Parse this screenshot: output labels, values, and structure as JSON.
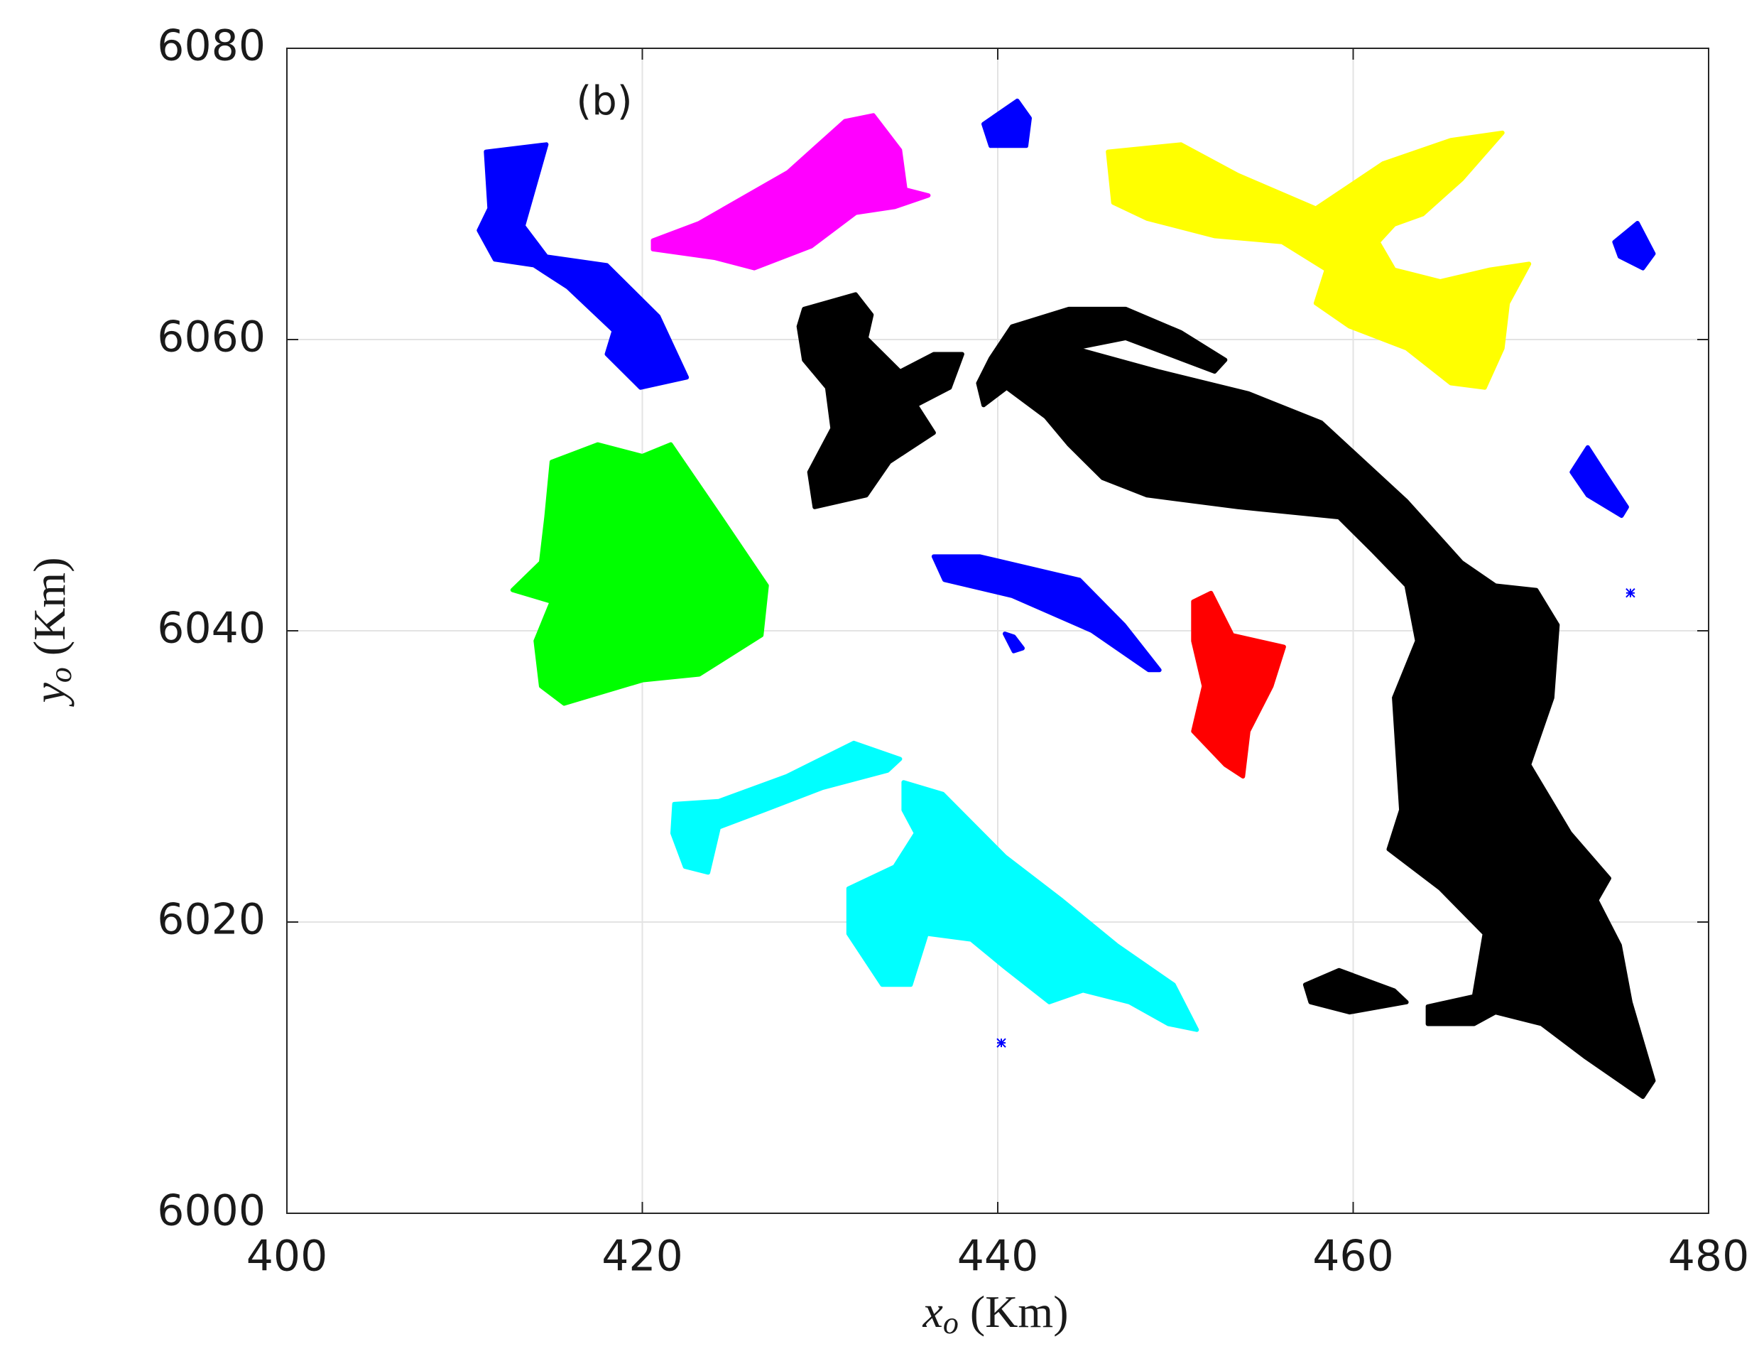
{
  "chart_data": {
    "type": "scatter",
    "annotation": "(b)",
    "xlabel": {
      "symbol": "x",
      "subscript": "o",
      "unit": "(Km)"
    },
    "ylabel": {
      "symbol": "y",
      "subscript": "o",
      "unit": "(Km)"
    },
    "xlim": [
      400,
      480
    ],
    "ylim": [
      6000,
      6080
    ],
    "xticks": [
      400,
      420,
      440,
      460,
      480
    ],
    "yticks": [
      6000,
      6020,
      6040,
      6060,
      6080
    ],
    "grid": true,
    "series": [
      {
        "color": "#0000ff",
        "x": [
          411.2,
          414.6,
          413.3,
          414.6,
          418.0,
          420.9,
          422.5,
          419.9,
          418.0,
          418.4,
          415.8,
          413.9,
          411.7,
          410.8,
          411.4,
          null,
          439.2,
          441.1,
          441.8,
          441.6,
          439.6,
          null,
          474.7,
          476.0,
          476.9,
          476.3,
          475.0,
          null,
          472.3,
          473.2,
          474.1,
          475.4,
          475.1,
          473.2,
          null,
          436.4,
          439.0,
          444.6,
          447.1,
          449.1,
          448.5,
          445.3,
          440.8,
          437.0,
          null,
          440.4,
          440.9,
          441.4,
          440.9,
          null,
          475.6,
          null,
          440.2
        ],
        "y": [
          6072.9,
          6073.4,
          6067.8,
          6065.7,
          6065.1,
          6061.6,
          6057.4,
          6056.7,
          6059.0,
          6060.6,
          6063.6,
          6065.1,
          6065.5,
          6067.5,
          6069.0,
          null,
          6074.8,
          6076.4,
          6075.2,
          6073.3,
          6073.3,
          null,
          6066.7,
          6068.0,
          6065.9,
          6064.9,
          6065.7,
          null,
          6050.9,
          6052.6,
          6050.9,
          6048.5,
          6047.9,
          6049.3,
          null,
          6045.1,
          6045.1,
          6043.5,
          6040.4,
          6037.3,
          6037.3,
          6040.0,
          6042.4,
          6043.5,
          null,
          6039.8,
          6039.6,
          6038.8,
          6038.6,
          null,
          6042.6,
          null,
          6011.7
        ]
      },
      {
        "color": "#ff00ff",
        "x": [
          420.6,
          423.2,
          428.2,
          431.4,
          433.0,
          434.5,
          434.8,
          436.1,
          434.2,
          432.0,
          429.5,
          426.3,
          424.1,
          420.6
        ],
        "y": [
          6066.8,
          6068.0,
          6071.5,
          6075.0,
          6075.4,
          6073.0,
          6070.3,
          6069.9,
          6069.1,
          6068.7,
          6066.4,
          6064.9,
          6065.6,
          6066.2
        ]
      },
      {
        "color": "#ffff00",
        "x": [
          446.2,
          450.3,
          453.5,
          457.9,
          461.7,
          465.5,
          468.4,
          466.1,
          463.9,
          462.3,
          461.4,
          462.3,
          464.9,
          467.7,
          469.9,
          468.7,
          468.4,
          467.4,
          465.5,
          463.0,
          459.8,
          457.9,
          458.5,
          456.0,
          452.2,
          448.4,
          446.5
        ],
        "y": [
          6072.9,
          6073.4,
          6071.3,
          6069.0,
          6072.1,
          6073.7,
          6074.2,
          6071.0,
          6068.6,
          6067.9,
          6066.7,
          6064.8,
          6064.0,
          6064.8,
          6065.2,
          6062.5,
          6059.4,
          6056.7,
          6057.0,
          6059.4,
          6060.9,
          6062.5,
          6064.8,
          6066.7,
          6067.1,
          6068.3,
          6069.4
        ]
      },
      {
        "color": "#000000",
        "x": [
          429.1,
          432.0,
          432.9,
          432.6,
          434.5,
          436.4,
          438.0,
          437.3,
          435.4,
          436.4,
          433.9,
          432.6,
          429.7,
          429.4,
          430.7,
          430.4,
          429.1,
          428.8,
          null,
          438.9,
          439.6,
          440.8,
          444.0,
          447.2,
          450.3,
          452.8,
          452.2,
          447.2,
          444.3,
          449.1,
          454.1,
          458.2,
          463.0,
          466.1,
          468.0,
          470.3,
          471.5,
          471.2,
          469.9,
          472.2,
          474.4,
          473.7,
          475.0,
          475.6,
          476.9,
          476.3,
          473.1,
          470.6,
          468.0,
          466.8,
          464.2,
          464.2,
          466.8,
          467.4,
          464.9,
          462.0,
          462.7,
          462.3,
          463.6,
          463.0,
          461.1,
          459.2,
          453.5,
          448.4,
          445.9,
          444.0,
          442.7,
          440.5,
          439.2,
          null,
          457.3,
          459.2,
          462.3,
          463.0,
          459.8,
          457.6
        ],
        "y": [
          6062.1,
          6063.1,
          6061.7,
          6060.1,
          6057.8,
          6059.0,
          6059.0,
          6056.7,
          6055.5,
          6053.6,
          6051.6,
          6049.3,
          6048.5,
          6050.9,
          6053.9,
          6056.7,
          6058.6,
          6060.9,
          null,
          6057.0,
          6058.7,
          6060.9,
          6062.1,
          6062.1,
          6060.5,
          6058.6,
          6057.8,
          6060.1,
          6059.4,
          6057.8,
          6056.3,
          6054.3,
          6048.9,
          6044.7,
          6043.1,
          6042.8,
          6040.4,
          6035.4,
          6030.8,
          6026.1,
          6023.0,
          6021.5,
          6018.4,
          6014.5,
          6009.1,
          6008.0,
          6010.7,
          6013.0,
          6013.8,
          6013.0,
          6013.0,
          6014.2,
          6014.9,
          6019.2,
          6022.3,
          6025.0,
          6027.7,
          6035.4,
          6039.3,
          6043.1,
          6045.5,
          6047.8,
          6048.5,
          6049.3,
          6050.5,
          6052.8,
          6054.7,
          6056.7,
          6055.5,
          null,
          6015.7,
          6016.7,
          6015.3,
          6014.5,
          6013.8,
          6014.5
        ]
      },
      {
        "color": "#00ff00",
        "x": [
          414.9,
          417.5,
          420.0,
          421.6,
          424.4,
          427.0,
          426.7,
          423.2,
          420.0,
          415.6,
          414.3,
          414.0,
          414.9,
          412.7,
          414.3,
          414.6
        ],
        "y": [
          6051.6,
          6052.8,
          6052.0,
          6052.8,
          6047.8,
          6043.1,
          6039.7,
          6037.0,
          6036.6,
          6035.0,
          6036.2,
          6039.3,
          6042.0,
          6042.8,
          6044.7,
          6047.8
        ]
      },
      {
        "color": "#ff0000",
        "x": [
          451.0,
          452.0,
          453.2,
          456.1,
          455.4,
          454.1,
          453.8,
          452.8,
          451.0,
          451.6,
          451.0
        ],
        "y": [
          6042.0,
          6042.6,
          6039.7,
          6038.9,
          6036.2,
          6033.1,
          6030.0,
          6030.8,
          6033.1,
          6036.2,
          6039.3
        ]
      },
      {
        "color": "#00ffff",
        "x": [
          421.8,
          424.3,
          428.1,
          431.9,
          434.5,
          433.8,
          430.1,
          426.9,
          424.3,
          423.7,
          422.4,
          421.7,
          null,
          434.7,
          436.9,
          440.4,
          443.6,
          446.7,
          449.9,
          451.2,
          449.6,
          447.4,
          444.8,
          442.9,
          440.4,
          438.5,
          436.0,
          435.1,
          433.5,
          431.6,
          431.6,
          434.2,
          435.4,
          434.7
        ],
        "y": [
          6028.1,
          6028.3,
          6030.0,
          6032.3,
          6031.2,
          6030.4,
          6029.2,
          6027.7,
          6026.5,
          6023.4,
          6023.8,
          6026.1,
          null,
          6029.6,
          6028.8,
          6024.5,
          6021.5,
          6018.4,
          6015.7,
          6012.6,
          6013.0,
          6014.5,
          6015.3,
          6014.5,
          6016.9,
          6018.8,
          6019.2,
          6015.7,
          6015.7,
          6019.2,
          6022.3,
          6023.8,
          6026.1,
          6027.7
        ]
      }
    ]
  }
}
